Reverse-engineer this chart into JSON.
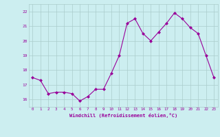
{
  "x": [
    0,
    1,
    2,
    3,
    4,
    5,
    6,
    7,
    8,
    9,
    10,
    11,
    12,
    13,
    14,
    15,
    16,
    17,
    18,
    19,
    20,
    21,
    22,
    23
  ],
  "y": [
    17.5,
    17.3,
    16.4,
    16.5,
    16.5,
    16.4,
    15.9,
    16.2,
    16.7,
    16.7,
    17.8,
    19.0,
    21.2,
    21.5,
    20.5,
    20.0,
    20.6,
    21.2,
    21.9,
    21.5,
    20.9,
    20.5,
    19.0,
    17.5
  ],
  "line_color": "#990099",
  "marker": "D",
  "marker_size": 2.0,
  "bg_color": "#cceef0",
  "grid_color": "#aacccc",
  "xlabel": "Windchill (Refroidissement éolien,°C)",
  "xlabel_color": "#990099",
  "tick_color": "#990099",
  "ylim": [
    15.5,
    22.5
  ],
  "xlim": [
    -0.5,
    23.5
  ],
  "yticks": [
    16,
    17,
    18,
    19,
    20,
    21,
    22
  ],
  "xticks": [
    0,
    1,
    2,
    3,
    4,
    5,
    6,
    7,
    8,
    9,
    10,
    11,
    12,
    13,
    14,
    15,
    16,
    17,
    18,
    19,
    20,
    21,
    22,
    23
  ]
}
